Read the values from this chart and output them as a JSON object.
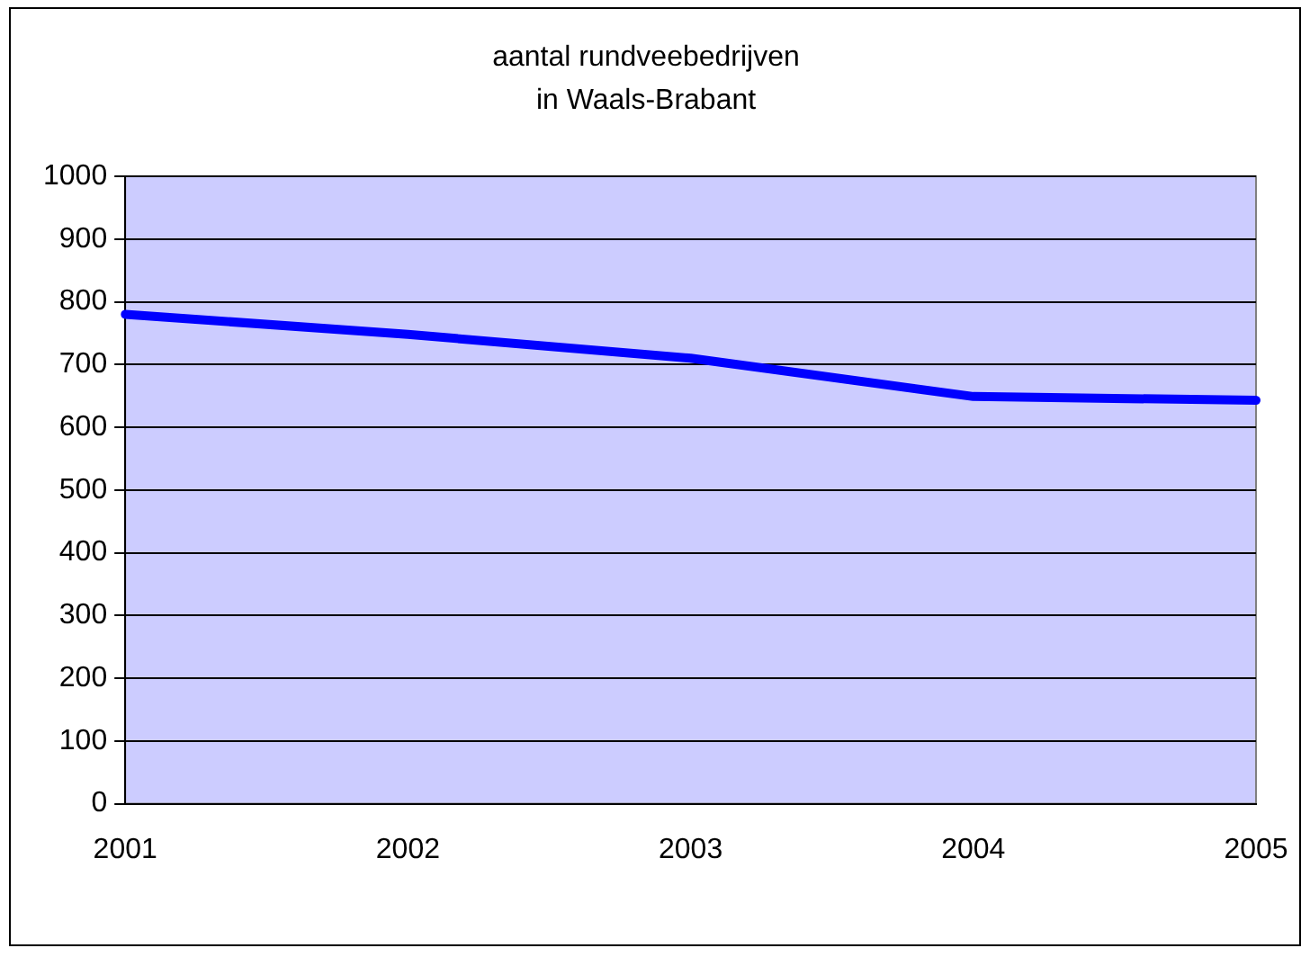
{
  "chart_data": {
    "type": "line",
    "title": "aantal rundveebedrijven\nin Waals-Brabant",
    "categories": [
      "2001",
      "2002",
      "2003",
      "2004",
      "2005"
    ],
    "series": [
      {
        "color": "#0000ff",
        "values": [
          780,
          748,
          710,
          649,
          643
        ]
      }
    ],
    "ylim": [
      0,
      1000
    ],
    "yticks": [
      0,
      100,
      200,
      300,
      400,
      500,
      600,
      700,
      800,
      900,
      1000
    ],
    "grid": "y",
    "legend": false,
    "marker": "none",
    "line_style": "solid"
  }
}
